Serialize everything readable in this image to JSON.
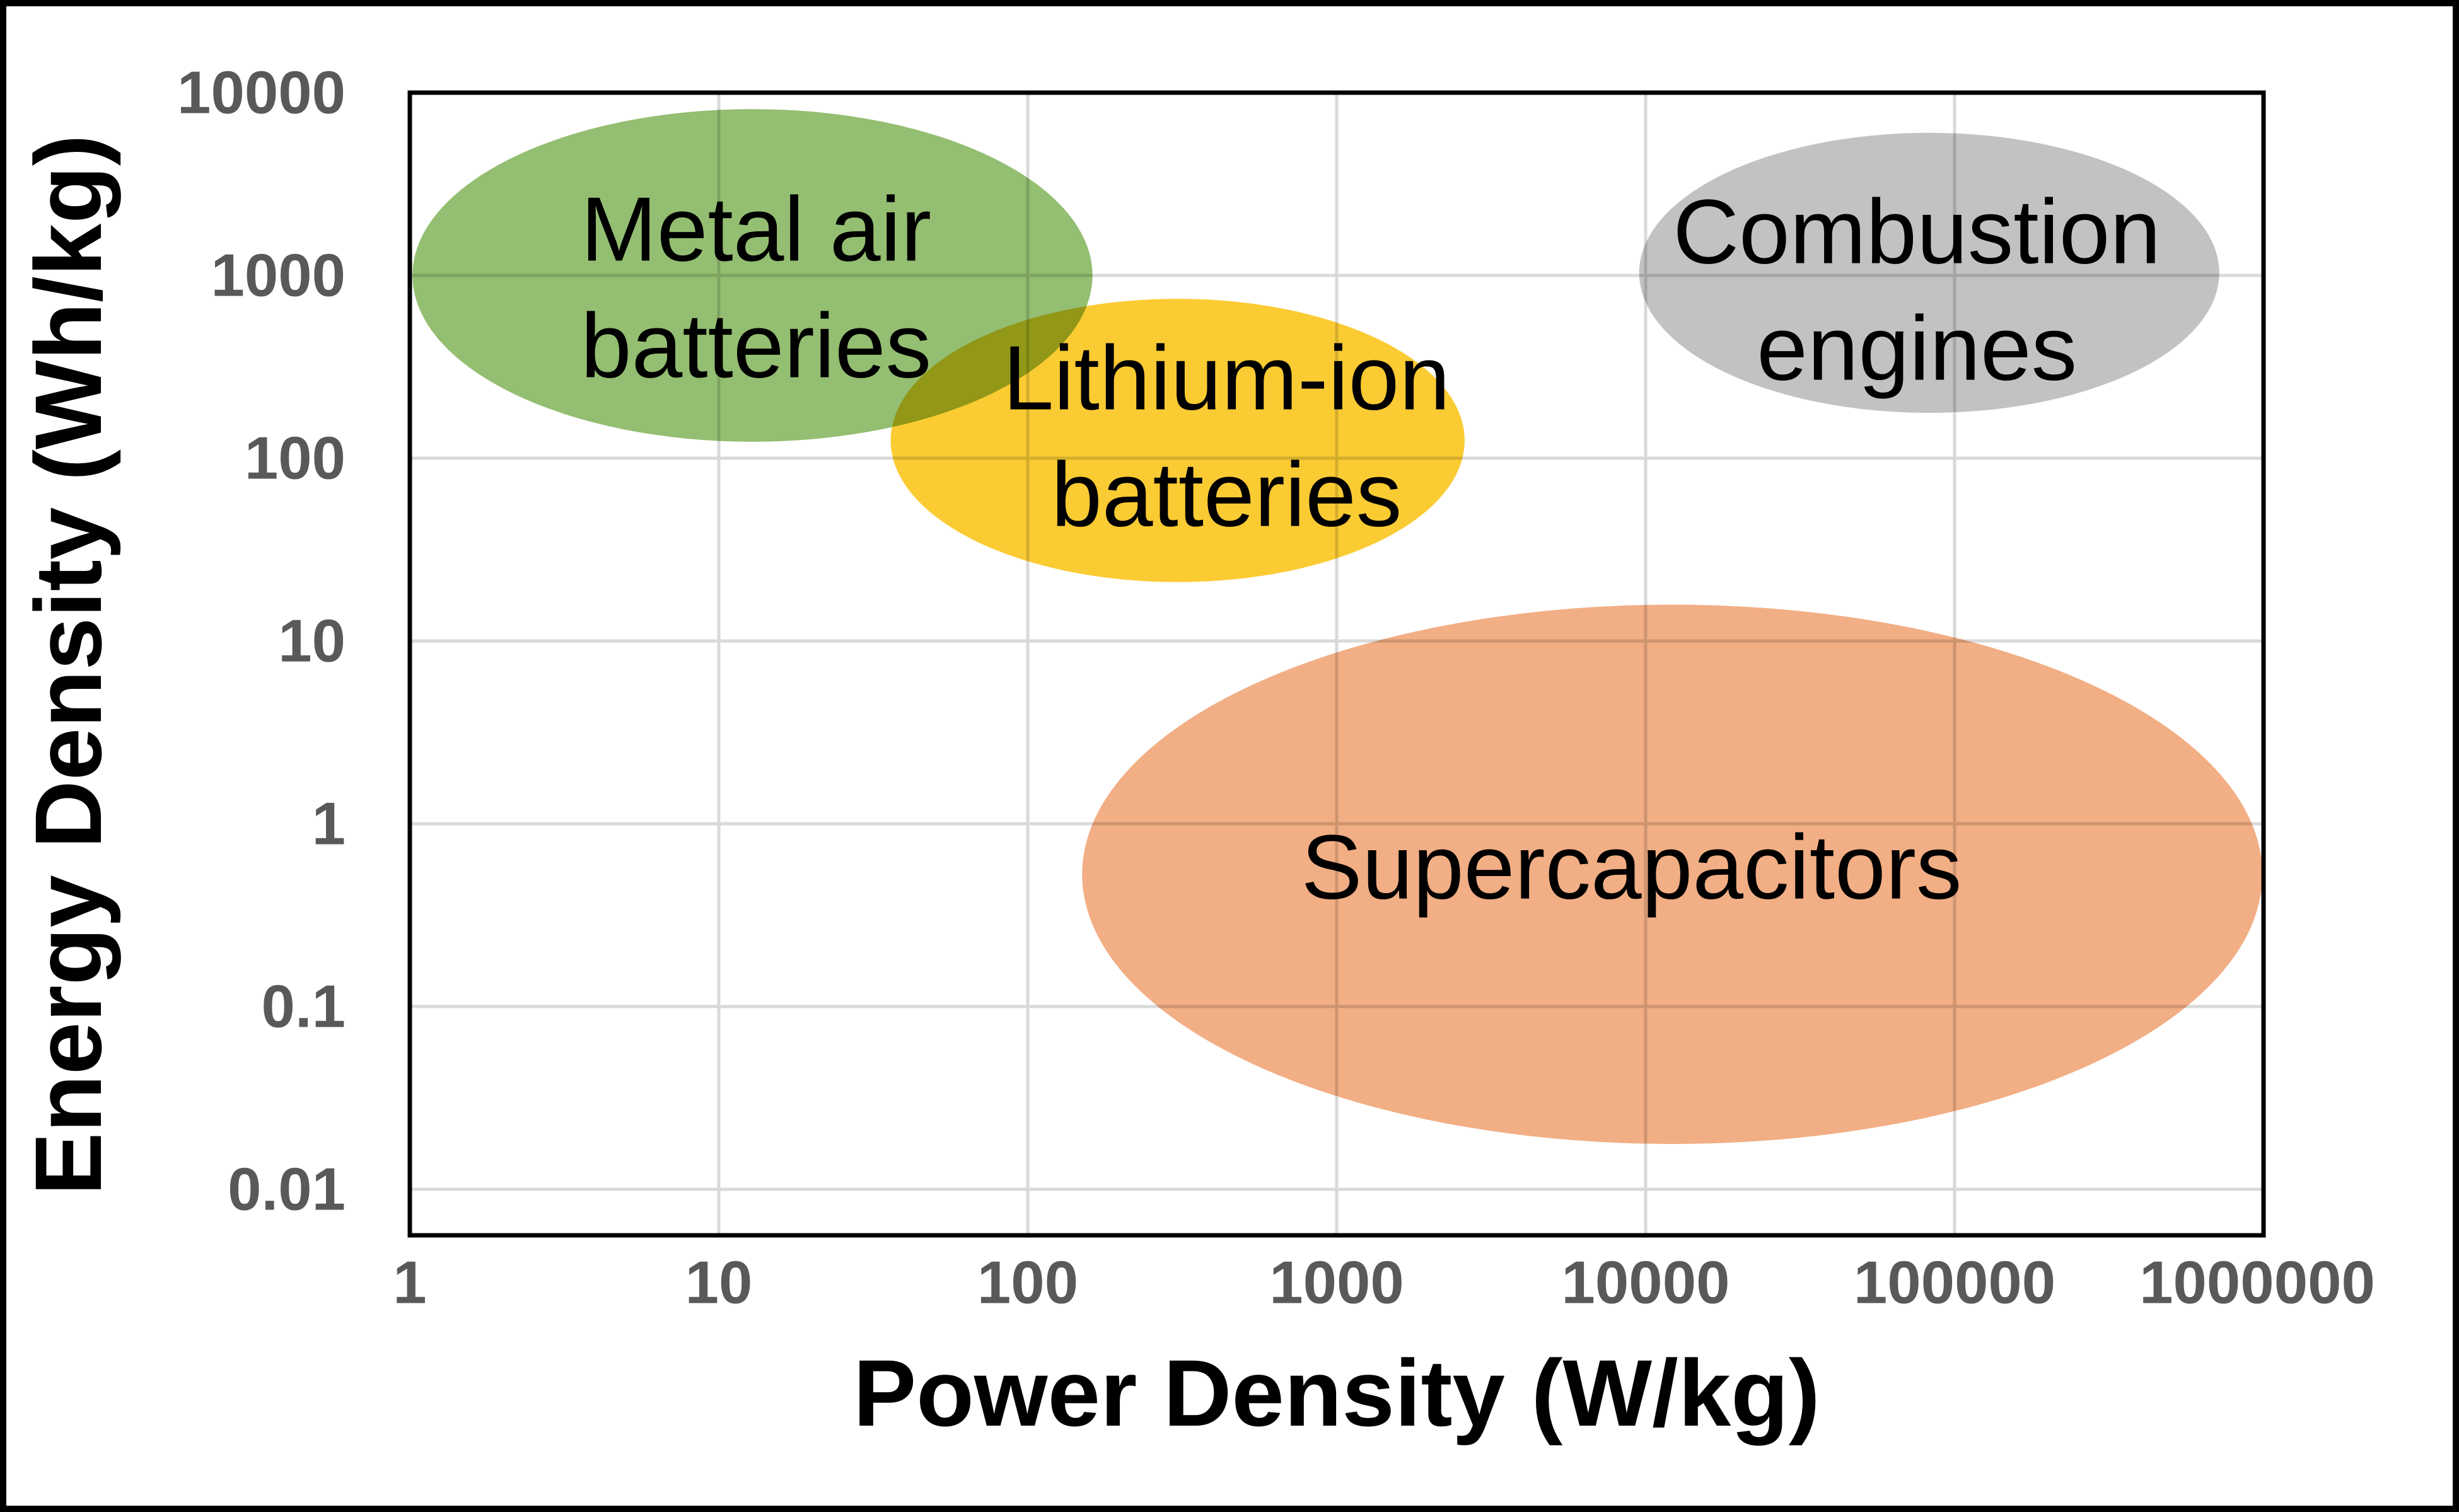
{
  "chart_data": {
    "type": "scatter",
    "subtype": "labeled-ellipse-regions",
    "title": "",
    "xlabel": "Power Density (W/kg)",
    "ylabel": "Energy Density (Wh/kg)",
    "x_scale": "log",
    "y_scale": "log",
    "xlim": [
      1,
      1000000
    ],
    "ylim": [
      0.0056,
      10000
    ],
    "x_tick_labels": [
      "1",
      "10",
      "100",
      "1000",
      "10000",
      "100000",
      "1000000"
    ],
    "y_tick_labels": [
      "10000",
      "1000",
      "100",
      "10",
      "1",
      "0.1",
      "0.01"
    ],
    "grid": true,
    "legend": "none",
    "ellipses": [
      {
        "label": "Metal air batteries",
        "label_lines": [
          "Metal air",
          "batteries"
        ],
        "color": "#94BE71",
        "x_center": 13,
        "y_center": 1000,
        "x_range": [
          1.02,
          162
        ],
        "y_range": [
          123,
          8130
        ],
        "label_at": {
          "x": 13.2,
          "y": 860
        }
      },
      {
        "label": "Lithium-ion batteries",
        "label_lines": [
          "Lithium-ion",
          "batteries"
        ],
        "color": "#FBCB33",
        "x_center": 306,
        "y_center": 126,
        "x_range": [
          36,
          2595
        ],
        "y_range": [
          21,
          745
        ],
        "label_at": {
          "x": 440,
          "y": 132
        }
      },
      {
        "label": "Combustion engines",
        "label_lines": [
          "Combustion",
          "engines"
        ],
        "color": "#C2C2C2",
        "x_center": 83000,
        "y_center": 1000,
        "x_range": [
          9530,
          719000
        ],
        "y_range": [
          177,
          6030
        ],
        "label_at": {
          "x": 75500,
          "y": 833
        }
      },
      {
        "label": "Supercapacitors",
        "label_lines": [
          "Supercapacitors"
        ],
        "color": "#F2AE84",
        "x_center": 12200,
        "y_center": 0.53,
        "x_range": [
          150,
          991000
        ],
        "y_range": [
          0.0177,
          15.8
        ],
        "label_at": {
          "x": 9000,
          "y": 0.58
        }
      }
    ],
    "colors": {
      "background": "#FFFFFF",
      "frame": "#000000",
      "plot_border": "#000000",
      "gridline": "#D9D9D9",
      "tick_label": "#595959",
      "axis_title": "#000000",
      "region_label": "#000000"
    }
  }
}
